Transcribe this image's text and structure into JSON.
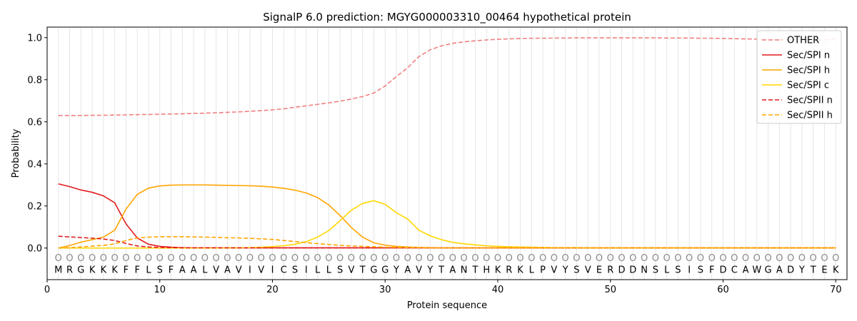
{
  "chart_data": {
    "type": "line",
    "title": "SignalP 6.0 prediction: MGYG000003310_00464 hypothetical protein",
    "xlabel": "Protein sequence",
    "ylabel": "Probability",
    "xlim": [
      0,
      71
    ],
    "ylim": [
      -0.15,
      1.05
    ],
    "xticks": [
      0,
      10,
      20,
      30,
      40,
      50,
      60,
      70
    ],
    "yticks": [
      0.0,
      0.2,
      0.4,
      0.6,
      0.8,
      1.0
    ],
    "ytick_labels": [
      "0.0",
      "0.2",
      "0.4",
      "0.6",
      "0.8",
      "1.0"
    ],
    "grid": "vertical lines at each residue",
    "legend_position": "top-right",
    "sequence": [
      "M",
      "R",
      "G",
      "K",
      "K",
      "K",
      "F",
      "F",
      "L",
      "S",
      "F",
      "A",
      "A",
      "L",
      "V",
      "A",
      "V",
      "I",
      "V",
      "I",
      "C",
      "S",
      "I",
      "L",
      "L",
      "S",
      "V",
      "T",
      "G",
      "G",
      "Y",
      "A",
      "V",
      "Y",
      "T",
      "A",
      "N",
      "T",
      "H",
      "K",
      "R",
      "K",
      "L",
      "P",
      "V",
      "Y",
      "S",
      "V",
      "E",
      "R",
      "D",
      "D",
      "N",
      "S",
      "L",
      "S",
      "I",
      "S",
      "F",
      "D",
      "C",
      "A",
      "W",
      "G",
      "A",
      "D",
      "Y",
      "T",
      "E",
      "K"
    ],
    "residue_marker": "O",
    "x": [
      1,
      2,
      3,
      4,
      5,
      6,
      7,
      8,
      9,
      10,
      11,
      12,
      13,
      14,
      15,
      16,
      17,
      18,
      19,
      20,
      21,
      22,
      23,
      24,
      25,
      26,
      27,
      28,
      29,
      30,
      31,
      32,
      33,
      34,
      35,
      36,
      37,
      38,
      39,
      40,
      41,
      42,
      43,
      44,
      45,
      46,
      47,
      48,
      49,
      50,
      51,
      52,
      53,
      54,
      55,
      56,
      57,
      58,
      59,
      60,
      61,
      62,
      63,
      64,
      65,
      66,
      67,
      68,
      69,
      70
    ],
    "series": [
      {
        "name": "OTHER",
        "color": "#f08080",
        "dash": "dashed",
        "values": [
          0.63,
          0.63,
          0.63,
          0.631,
          0.631,
          0.632,
          0.633,
          0.634,
          0.635,
          0.636,
          0.637,
          0.638,
          0.64,
          0.641,
          0.643,
          0.645,
          0.647,
          0.65,
          0.653,
          0.657,
          0.662,
          0.669,
          0.676,
          0.683,
          0.69,
          0.698,
          0.708,
          0.72,
          0.737,
          0.77,
          0.815,
          0.857,
          0.91,
          0.942,
          0.961,
          0.973,
          0.98,
          0.985,
          0.989,
          0.992,
          0.994,
          0.996,
          0.997,
          0.997,
          0.998,
          0.998,
          0.999,
          0.999,
          0.999,
          0.999,
          0.999,
          0.999,
          0.999,
          0.999,
          0.998,
          0.998,
          0.998,
          0.997,
          0.997,
          0.996,
          0.995,
          0.994,
          0.993,
          0.992,
          0.991,
          0.991,
          0.991,
          0.99,
          0.989,
          0.995
        ]
      },
      {
        "name": "Sec/SPI n",
        "color": "#e31a1c",
        "dash": "solid",
        "values": [
          0.305,
          0.292,
          0.276,
          0.265,
          0.248,
          0.215,
          0.115,
          0.048,
          0.018,
          0.008,
          0.004,
          0.002,
          0.001,
          0.001,
          0.001,
          0.001,
          0.001,
          0.001,
          0.001,
          0.001,
          0.001,
          0.001,
          0.001,
          0.001,
          0.001,
          0.001,
          0.001,
          0.001,
          0.001,
          0.001,
          0.001,
          0.001,
          0.001,
          0.001,
          0.001,
          0.001,
          0.001,
          0.001,
          0.001,
          0.001,
          0.001,
          0.001,
          0.001,
          0.001,
          0.001,
          0.001,
          0.001,
          0.001,
          0.001,
          0.001,
          0.001,
          0.001,
          0.001,
          0.001,
          0.001,
          0.001,
          0.001,
          0.001,
          0.001,
          0.001,
          0.001,
          0.001,
          0.001,
          0.001,
          0.001,
          0.001,
          0.001,
          0.001,
          0.001,
          0.001
        ]
      },
      {
        "name": "Sec/SPI h",
        "color": "#ffa500",
        "dash": "solid",
        "values": [
          0.0,
          0.012,
          0.028,
          0.04,
          0.052,
          0.085,
          0.185,
          0.255,
          0.285,
          0.295,
          0.299,
          0.3,
          0.3,
          0.3,
          0.299,
          0.298,
          0.297,
          0.296,
          0.294,
          0.29,
          0.284,
          0.275,
          0.262,
          0.24,
          0.205,
          0.155,
          0.098,
          0.052,
          0.025,
          0.014,
          0.008,
          0.005,
          0.003,
          0.002,
          0.001,
          0.001,
          0.001,
          0.001,
          0.001,
          0.001,
          0.001,
          0.001,
          0.001,
          0.001,
          0.001,
          0.001,
          0.001,
          0.001,
          0.001,
          0.001,
          0.001,
          0.001,
          0.001,
          0.001,
          0.001,
          0.001,
          0.001,
          0.001,
          0.001,
          0.001,
          0.001,
          0.001,
          0.001,
          0.001,
          0.001,
          0.001,
          0.001,
          0.001,
          0.001,
          0.001
        ]
      },
      {
        "name": "Sec/SPI c",
        "color": "#ffd700",
        "dash": "solid",
        "values": [
          0.0,
          0.0,
          0.0,
          0.0,
          0.0,
          0.0,
          0.0,
          0.0,
          0.0,
          0.0,
          0.0,
          0.0,
          0.0,
          0.0,
          0.0,
          0.001,
          0.001,
          0.002,
          0.004,
          0.007,
          0.011,
          0.018,
          0.03,
          0.052,
          0.083,
          0.13,
          0.18,
          0.212,
          0.225,
          0.208,
          0.168,
          0.138,
          0.085,
          0.058,
          0.04,
          0.027,
          0.02,
          0.015,
          0.011,
          0.008,
          0.006,
          0.005,
          0.004,
          0.003,
          0.002,
          0.002,
          0.002,
          0.001,
          0.001,
          0.001,
          0.001,
          0.001,
          0.001,
          0.001,
          0.001,
          0.001,
          0.001,
          0.001,
          0.001,
          0.001,
          0.001,
          0.001,
          0.001,
          0.001,
          0.001,
          0.001,
          0.001,
          0.001,
          0.001,
          0.001
        ]
      },
      {
        "name": "Sec/SPII n",
        "color": "#e31a1c",
        "dash": "dashed",
        "values": [
          0.056,
          0.053,
          0.05,
          0.047,
          0.043,
          0.036,
          0.022,
          0.01,
          0.005,
          0.003,
          0.002,
          0.001,
          0.001,
          0.001,
          0.001,
          0.001,
          0.001,
          0.001,
          0.001,
          0.001,
          0.001,
          0.001,
          0.001,
          0.001,
          0.001,
          0.001,
          0.001,
          0.001,
          0.001,
          0.001,
          0.001,
          0.001,
          0.001,
          0.001,
          0.001,
          0.001,
          0.001,
          0.001,
          0.001,
          0.001,
          0.001,
          0.001,
          0.001,
          0.001,
          0.001,
          0.001,
          0.001,
          0.001,
          0.001,
          0.001,
          0.001,
          0.001,
          0.001,
          0.001,
          0.001,
          0.001,
          0.001,
          0.001,
          0.001,
          0.001,
          0.001,
          0.001,
          0.001,
          0.001,
          0.001,
          0.001,
          0.001,
          0.001,
          0.001,
          0.001
        ]
      },
      {
        "name": "Sec/SPII h",
        "color": "#ffa500",
        "dash": "dashed",
        "values": [
          0.0,
          0.002,
          0.005,
          0.009,
          0.013,
          0.02,
          0.036,
          0.048,
          0.052,
          0.054,
          0.054,
          0.054,
          0.053,
          0.052,
          0.051,
          0.049,
          0.048,
          0.046,
          0.044,
          0.041,
          0.036,
          0.031,
          0.026,
          0.021,
          0.017,
          0.013,
          0.01,
          0.008,
          0.006,
          0.004,
          0.003,
          0.002,
          0.002,
          0.001,
          0.001,
          0.001,
          0.001,
          0.001,
          0.001,
          0.001,
          0.001,
          0.001,
          0.001,
          0.001,
          0.001,
          0.001,
          0.001,
          0.001,
          0.001,
          0.001,
          0.001,
          0.001,
          0.001,
          0.001,
          0.001,
          0.001,
          0.001,
          0.001,
          0.001,
          0.001,
          0.001,
          0.001,
          0.001,
          0.001,
          0.001,
          0.001,
          0.001,
          0.001,
          0.001,
          0.001
        ]
      }
    ]
  }
}
